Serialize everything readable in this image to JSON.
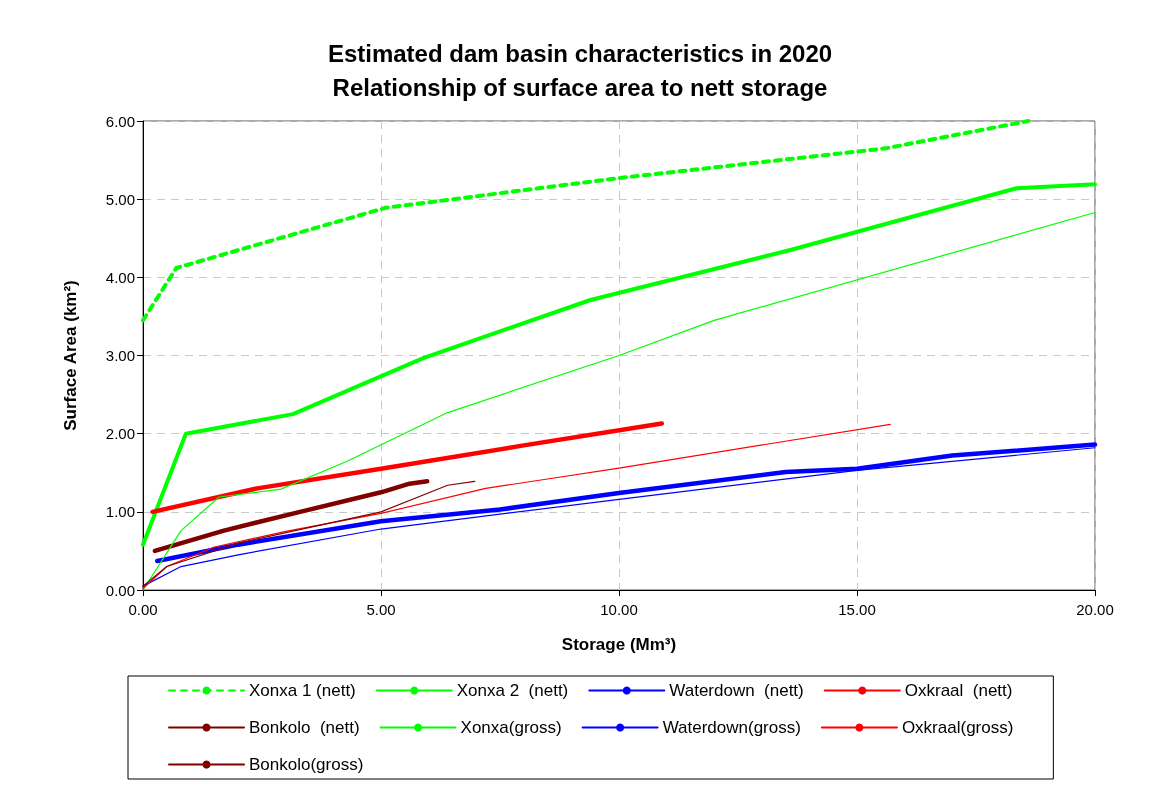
{
  "chart_data": {
    "type": "line",
    "title": "Estimated dam basin characteristics in 2020",
    "subtitle": "Relationship of surface area to nett storage",
    "xlabel": "Storage (Mm³)",
    "ylabel": "Surface Area (km²)",
    "xlim": [
      0,
      20
    ],
    "xticks": [
      {
        "value": 0,
        "label": "0.00"
      },
      {
        "value": 5,
        "label": "5.00"
      },
      {
        "value": 10,
        "label": "10.00"
      },
      {
        "value": 15,
        "label": "15.00"
      },
      {
        "value": 20,
        "label": "20.00"
      }
    ],
    "ylim": [
      0,
      6
    ],
    "yticks": [
      {
        "value": 0,
        "label": "0.00"
      },
      {
        "value": 1,
        "label": "1.00"
      },
      {
        "value": 2,
        "label": "2.00"
      },
      {
        "value": 3,
        "label": "3.00"
      },
      {
        "value": 4,
        "label": "4.00"
      },
      {
        "value": 5,
        "label": "5.00"
      },
      {
        "value": 6,
        "label": "6.00"
      }
    ],
    "grid": true,
    "legend": "bottom",
    "marker": "none",
    "series": [
      {
        "name": "Xonxa 1 (nett)",
        "color": "#00ff00",
        "line_style": "dashed",
        "x": [
          0,
          0.7,
          5.1,
          10,
          15.6,
          18.6
        ],
        "values": [
          3.45,
          4.12,
          4.89,
          5.27,
          5.65,
          6.0
        ]
      },
      {
        "name": "Xonxa 2  (nett)",
        "color": "#00ff00",
        "x": [
          0,
          0.9,
          3.15,
          5.9,
          9.4,
          13.6,
          18.35,
          20
        ],
        "values": [
          0.58,
          2.0,
          2.25,
          2.97,
          3.71,
          4.35,
          5.14,
          5.19
        ]
      },
      {
        "name": "Waterdown  (nett)",
        "color": "#0000ff",
        "x": [
          0.3,
          2,
          5,
          7.5,
          10,
          13.5,
          15,
          17,
          20
        ],
        "values": [
          0.37,
          0.58,
          0.88,
          1.03,
          1.24,
          1.51,
          1.55,
          1.72,
          1.86
        ]
      },
      {
        "name": "Oxkraal  (nett)",
        "color": "#ff0000",
        "x": [
          0.2,
          2.4,
          5,
          8,
          10.9
        ],
        "values": [
          1.0,
          1.3,
          1.55,
          1.85,
          2.13
        ]
      },
      {
        "name": "Bonkolo  (nett)",
        "color": "#800000",
        "x": [
          0.25,
          1.7,
          3.3,
          5,
          5.6,
          5.97
        ],
        "values": [
          0.5,
          0.76,
          1.0,
          1.25,
          1.36,
          1.39
        ]
      },
      {
        "name": "Xonxa(gross)",
        "color": "#00ff00",
        "x": [
          0,
          0.8,
          1.6,
          2.9,
          4.3,
          6.4,
          10,
          12,
          20
        ],
        "values": [
          0,
          0.76,
          1.19,
          1.29,
          1.65,
          2.27,
          3.0,
          3.45,
          4.83
        ]
      },
      {
        "name": "Waterdown(gross)",
        "color": "#0000ff",
        "x": [
          0,
          0.8,
          2,
          5,
          10,
          15,
          20
        ],
        "values": [
          0.05,
          0.3,
          0.45,
          0.78,
          1.16,
          1.53,
          1.82
        ]
      },
      {
        "name": "Oxkraal(gross)",
        "color": "#ff0000",
        "x": [
          0,
          0.5,
          1.5,
          3,
          5,
          7.2,
          8.6,
          10,
          15.7
        ],
        "values": [
          0.02,
          0.3,
          0.55,
          0.75,
          0.98,
          1.3,
          1.43,
          1.56,
          2.12
        ]
      },
      {
        "name": "Bonkolo(gross)",
        "color": "#800000",
        "x": [
          0,
          0.5,
          2,
          5,
          6.4,
          6.97
        ],
        "values": [
          0.05,
          0.3,
          0.6,
          1.0,
          1.34,
          1.39
        ]
      }
    ]
  }
}
